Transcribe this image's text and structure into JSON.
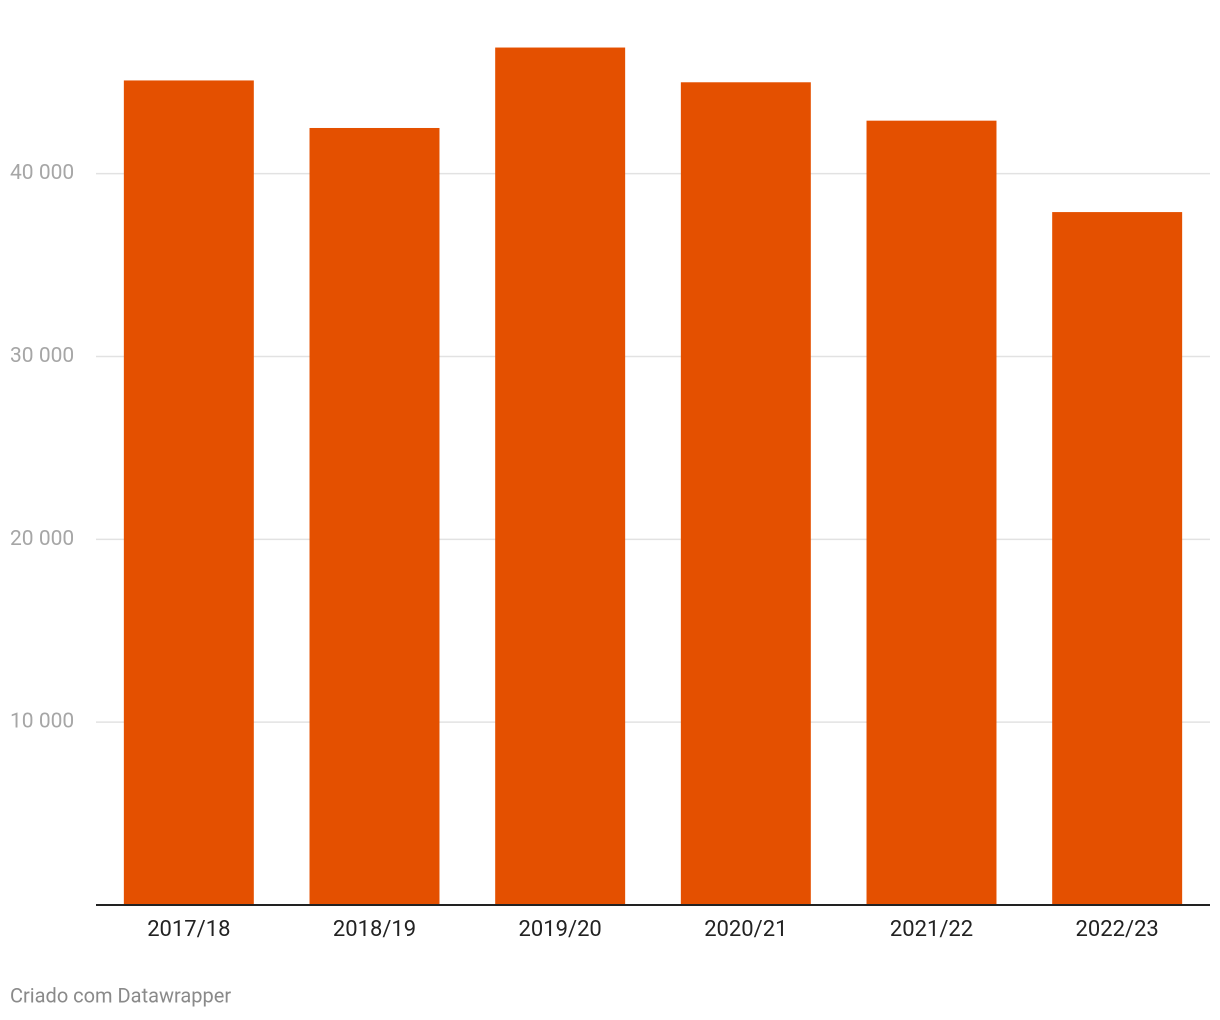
{
  "chart_data": {
    "type": "bar",
    "categories": [
      "2017/18",
      "2018/19",
      "2019/20",
      "2020/21",
      "2021/22",
      "2022/23"
    ],
    "values": [
      45100,
      42500,
      46900,
      45000,
      42900,
      37900
    ],
    "color": "#e45000",
    "ylim": [
      0,
      49500
    ],
    "yticks": [
      {
        "value": 10000,
        "label": "10 000"
      },
      {
        "value": 20000,
        "label": "20 000"
      },
      {
        "value": 30000,
        "label": "30 000"
      },
      {
        "value": 40000,
        "label": "40 000"
      }
    ],
    "grid": true,
    "footer": "Criado com Datawrapper"
  }
}
